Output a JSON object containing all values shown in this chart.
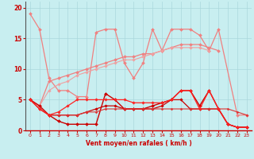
{
  "background_color": "#c8eef0",
  "grid_color": "#aad8dc",
  "xlabel": "Vent moyen/en rafales ( km/h )",
  "xlabel_color": "#cc0000",
  "tick_color": "#cc0000",
  "xlim": [
    -0.5,
    23.5
  ],
  "ylim": [
    0,
    21
  ],
  "yticks": [
    0,
    5,
    10,
    15,
    20
  ],
  "xticks": [
    0,
    1,
    2,
    3,
    4,
    5,
    6,
    7,
    8,
    9,
    10,
    11,
    12,
    13,
    14,
    15,
    16,
    17,
    18,
    19,
    20,
    21,
    22,
    23
  ],
  "series": [
    {
      "x": [
        0,
        1,
        2,
        3,
        4,
        5,
        6,
        7,
        8,
        9,
        10,
        11,
        12,
        13,
        14,
        15,
        16,
        17,
        18,
        19,
        20,
        22,
        23
      ],
      "y": [
        19,
        16.5,
        8.5,
        6.5,
        6.5,
        5.5,
        5.5,
        16,
        16.5,
        16.5,
        11,
        8.5,
        11,
        16.5,
        13,
        16.5,
        16.5,
        16.5,
        15.5,
        13,
        16.5,
        2.5,
        2.5
      ],
      "color": "#f08080",
      "lw": 0.9,
      "marker": "D",
      "ms": 2.0
    },
    {
      "x": [
        0,
        1,
        2,
        3,
        4,
        5,
        6,
        7,
        8,
        9,
        10,
        11,
        12,
        13,
        14,
        15,
        16,
        17,
        18,
        19,
        20
      ],
      "y": [
        5,
        4,
        8,
        8.5,
        9,
        9.5,
        10,
        10.5,
        11,
        11.5,
        12,
        12,
        12.5,
        12.5,
        13,
        13.5,
        14,
        14,
        14,
        13.5,
        13
      ],
      "color": "#f08080",
      "lw": 0.9,
      "marker": "D",
      "ms": 2.0
    },
    {
      "x": [
        0,
        1,
        2,
        3,
        4,
        5,
        6,
        7,
        8,
        9,
        10,
        11,
        12,
        13,
        14,
        15,
        16,
        17,
        18,
        19
      ],
      "y": [
        5,
        4,
        6.5,
        7.5,
        8,
        9,
        9.5,
        10,
        10.5,
        11,
        11.5,
        11.5,
        12,
        12.5,
        13,
        13.5,
        13.5,
        13.5,
        13.5,
        13
      ],
      "color": "#f0a0a0",
      "lw": 0.8,
      "marker": "D",
      "ms": 1.8
    },
    {
      "x": [
        0,
        1,
        2,
        3,
        4,
        5,
        6,
        7,
        8,
        9,
        10,
        11,
        12,
        13,
        14,
        15,
        16,
        17,
        18,
        19,
        20,
        21,
        22,
        23
      ],
      "y": [
        5.0,
        4.0,
        2.5,
        1.5,
        1.0,
        1.0,
        1.0,
        1.0,
        6.0,
        5.0,
        3.5,
        3.5,
        3.5,
        4.0,
        4.5,
        5.0,
        6.5,
        6.5,
        4.0,
        6.5,
        3.5,
        1.0,
        0.5,
        0.5
      ],
      "color": "#cc0000",
      "lw": 1.0,
      "marker": "D",
      "ms": 2.0
    },
    {
      "x": [
        0,
        1,
        2,
        3,
        4,
        5,
        6,
        7,
        8,
        9,
        10,
        11,
        12,
        13,
        14,
        15,
        16,
        17,
        18,
        19,
        20,
        21,
        22,
        23
      ],
      "y": [
        5.0,
        3.5,
        2.5,
        2.5,
        2.5,
        2.5,
        3.0,
        3.5,
        4.0,
        4.0,
        3.5,
        3.5,
        3.5,
        3.5,
        4.0,
        5.0,
        5.0,
        3.5,
        3.5,
        3.5,
        3.5,
        1.0,
        0.5,
        0.5
      ],
      "color": "#cc0000",
      "lw": 0.9,
      "marker": "D",
      "ms": 1.8
    },
    {
      "x": [
        0,
        1,
        2,
        3,
        4,
        5,
        6,
        7,
        8,
        9,
        10,
        11,
        12,
        13,
        14,
        15,
        16,
        17,
        18,
        19,
        20,
        21,
        22,
        23
      ],
      "y": [
        5.0,
        3.5,
        2.5,
        2.5,
        2.5,
        2.5,
        3.0,
        3.0,
        3.5,
        3.5,
        3.5,
        3.5,
        3.5,
        3.5,
        3.5,
        3.5,
        3.5,
        3.5,
        3.5,
        3.5,
        3.5,
        3.5,
        3.0,
        2.5
      ],
      "color": "#dd3333",
      "lw": 0.8,
      "marker": "D",
      "ms": 1.5
    },
    {
      "x": [
        0,
        1,
        2,
        3,
        4,
        5,
        6,
        7,
        8,
        9,
        10,
        11,
        12,
        13,
        14,
        15,
        16,
        17,
        18,
        19,
        20,
        21,
        22,
        23
      ],
      "y": [
        5.0,
        3.5,
        2.5,
        3.0,
        4.0,
        5.0,
        5.0,
        5.0,
        5.0,
        5.0,
        5.0,
        4.5,
        4.5,
        4.5,
        4.5,
        5.0,
        6.5,
        6.5,
        3.5,
        6.5,
        3.5,
        1.0,
        0.5,
        0.5
      ],
      "color": "#ff2222",
      "lw": 0.9,
      "marker": "D",
      "ms": 1.8
    }
  ]
}
